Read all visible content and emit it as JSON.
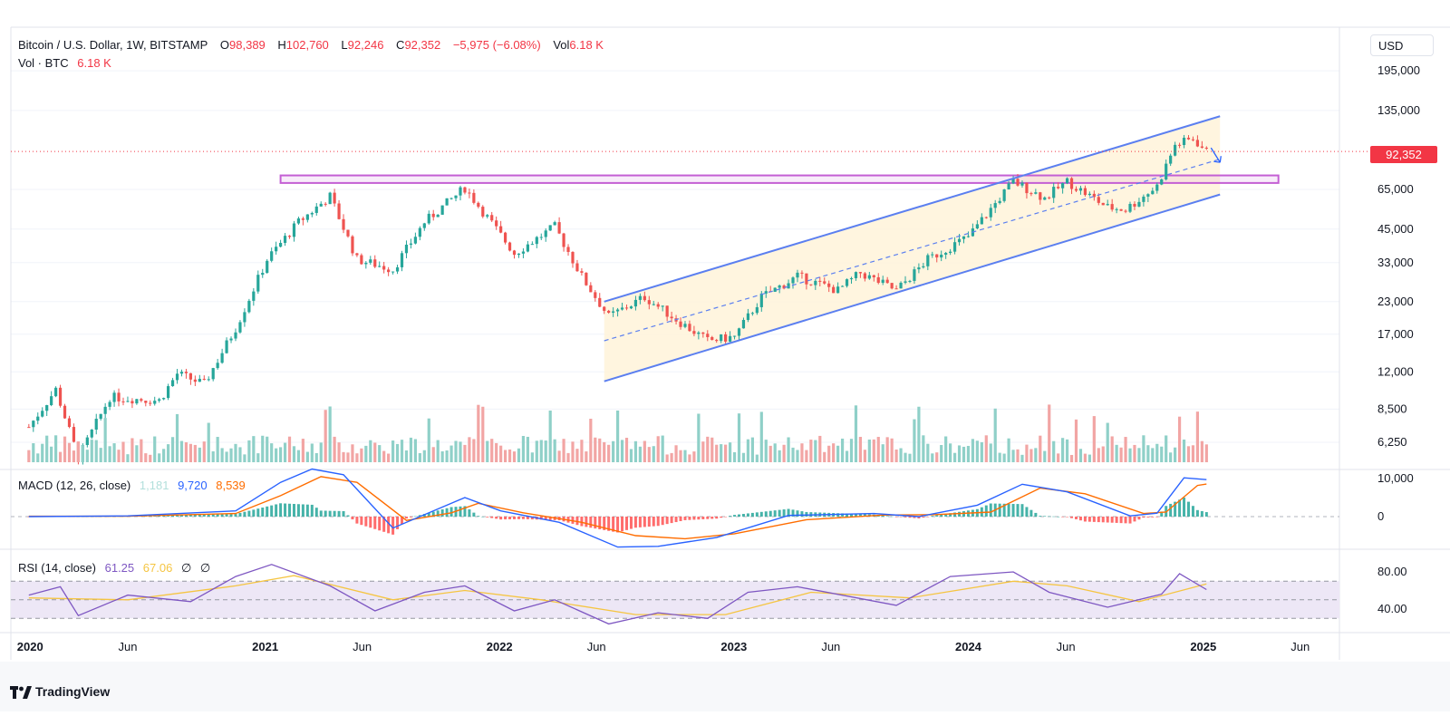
{
  "symbol": {
    "name": "Bitcoin / U.S. Dollar, 1W, BITSTAMP",
    "open_label": "O",
    "open": "98,389",
    "high_label": "H",
    "high": "102,760",
    "low_label": "L",
    "low": "92,246",
    "close_label": "C",
    "close": "92,352",
    "change": "−5,975 (−6.08%)",
    "vol_label": "Vol",
    "vol": "6.18 K"
  },
  "volume_legend": {
    "label": "Vol · BTC",
    "value": "6.18 K"
  },
  "currency": "USD",
  "last_price_tag": "92,352",
  "macd_legend": {
    "label": "MACD (12, 26, close)",
    "hist": "1,181",
    "macd": "9,720",
    "signal": "8,539"
  },
  "rsi_legend": {
    "label": "RSI (14, close)",
    "rsi": "61.25",
    "ma": "67.06",
    "extra1": "∅",
    "extra2": "∅"
  },
  "brand": "TradingView",
  "colors": {
    "up": "#26a69a",
    "down": "#ef5350",
    "vol_up": "#8fd0c8",
    "vol_down": "#f2a5a4",
    "channel_line": "#5b7ff0",
    "channel_fill": "#fff3d9",
    "resistance_box": "#c45fd4",
    "macd": "#2962ff",
    "signal": "#ff6d00",
    "rsi": "#7e57c2",
    "rsi_ma": "#f5c542",
    "rsi_band": "#ede7f6"
  },
  "chart_data": [
    {
      "type": "candlestick",
      "title": "Bitcoin / U.S. Dollar, 1W, BITSTAMP",
      "scale": "log",
      "y_ticks": [
        6250,
        8500,
        12000,
        17000,
        23000,
        33000,
        45000,
        65000,
        135000,
        195000
      ],
      "y_tick_labels": [
        "6,250",
        "8,500",
        "12,000",
        "17,000",
        "23,000",
        "33,000",
        "45,000",
        "65,000",
        "135,000",
        "195,000"
      ],
      "x_ticks": [
        "2020",
        "Jun",
        "2021",
        "Jun",
        "2022",
        "Jun",
        "2023",
        "Jun",
        "2024",
        "Jun",
        "2025",
        "Jun"
      ],
      "last_price": 92352,
      "price_path": [
        [
          "2019-12-30",
          7200
        ],
        [
          "2020-02-10",
          10200
        ],
        [
          "2020-03-16",
          5400
        ],
        [
          "2020-05-04",
          9500
        ],
        [
          "2020-07-20",
          9200
        ],
        [
          "2020-08-17",
          11800
        ],
        [
          "2020-09-28",
          10700
        ],
        [
          "2020-11-16",
          18000
        ],
        [
          "2021-01-04",
          34000
        ],
        [
          "2021-02-22",
          48000
        ],
        [
          "2021-04-12",
          61000
        ],
        [
          "2021-05-24",
          34000
        ],
        [
          "2021-07-19",
          31000
        ],
        [
          "2021-09-06",
          48000
        ],
        [
          "2021-11-08",
          66000
        ],
        [
          "2022-01-24",
          36000
        ],
        [
          "2022-03-28",
          46000
        ],
        [
          "2022-05-09",
          29000
        ],
        [
          "2022-06-20",
          20000
        ],
        [
          "2022-08-15",
          24000
        ],
        [
          "2022-10-03",
          19500
        ],
        [
          "2022-11-21",
          16000
        ],
        [
          "2023-01-02",
          16600
        ],
        [
          "2023-02-13",
          24000
        ],
        [
          "2023-04-10",
          29000
        ],
        [
          "2023-06-12",
          25500
        ],
        [
          "2023-07-17",
          30000
        ],
        [
          "2023-09-11",
          25500
        ],
        [
          "2023-10-30",
          34000
        ],
        [
          "2024-01-01",
          42000
        ],
        [
          "2024-03-11",
          70000
        ],
        [
          "2024-04-29",
          60000
        ],
        [
          "2024-06-03",
          70000
        ],
        [
          "2024-08-05",
          55000
        ],
        [
          "2024-09-02",
          54000
        ],
        [
          "2024-10-21",
          67000
        ],
        [
          "2024-11-18",
          98000
        ],
        [
          "2024-12-16",
          104000
        ],
        [
          "2025-01-06",
          92352
        ]
      ],
      "channel": {
        "upper": [
          [
            "2022-06-13",
            23000
          ],
          [
            "2025-01-27",
            128000
          ]
        ],
        "lower": [
          [
            "2022-06-13",
            11000
          ],
          [
            "2025-01-27",
            62000
          ]
        ],
        "mid": [
          [
            "2022-06-13",
            16000
          ],
          [
            "2025-01-27",
            86000
          ]
        ]
      },
      "resistance_zone": {
        "from": "2021-01-25",
        "to": "2025-04-28",
        "low": 69000,
        "high": 74000
      }
    },
    {
      "type": "bar",
      "title": "Vol · BTC",
      "description": "weekly volume bars, shaded by candle direction"
    },
    {
      "type": "line",
      "title": "MACD (12, 26, close)",
      "y_ticks": [
        0,
        10000
      ],
      "y_tick_labels": [
        "0",
        "10,000"
      ],
      "series": [
        {
          "name": "MACD",
          "points": [
            [
              "2019-12-30",
              0
            ],
            [
              "2020-06-01",
              200
            ],
            [
              "2020-11-16",
              1500
            ],
            [
              "2021-01-25",
              9000
            ],
            [
              "2021-03-15",
              12500
            ],
            [
              "2021-05-03",
              11000
            ],
            [
              "2021-07-19",
              -3000
            ],
            [
              "2021-10-04",
              2500
            ],
            [
              "2021-11-08",
              5000
            ],
            [
              "2022-01-03",
              1500
            ],
            [
              "2022-04-04",
              -1500
            ],
            [
              "2022-07-04",
              -8000
            ],
            [
              "2022-09-05",
              -7800
            ],
            [
              "2022-12-05",
              -5500
            ],
            [
              "2023-03-27",
              300
            ],
            [
              "2023-08-07",
              800
            ],
            [
              "2023-10-16",
              0
            ],
            [
              "2024-01-15",
              3000
            ],
            [
              "2024-03-25",
              8500
            ],
            [
              "2024-06-03",
              6500
            ],
            [
              "2024-09-09",
              200
            ],
            [
              "2024-10-21",
              900
            ],
            [
              "2024-12-02",
              10200
            ],
            [
              "2025-01-06",
              9720
            ]
          ]
        },
        {
          "name": "Signal",
          "points": [
            [
              "2019-12-30",
              100
            ],
            [
              "2020-06-01",
              100
            ],
            [
              "2020-11-16",
              800
            ],
            [
              "2021-01-25",
              5500
            ],
            [
              "2021-03-29",
              10500
            ],
            [
              "2021-05-24",
              9000
            ],
            [
              "2021-08-09",
              -1000
            ],
            [
              "2021-10-18",
              1000
            ],
            [
              "2021-11-29",
              3500
            ],
            [
              "2022-02-07",
              1000
            ],
            [
              "2022-05-09",
              -1500
            ],
            [
              "2022-08-01",
              -5000
            ],
            [
              "2022-10-17",
              -5800
            ],
            [
              "2023-01-02",
              -4500
            ],
            [
              "2023-04-24",
              -800
            ],
            [
              "2023-08-21",
              400
            ],
            [
              "2023-11-06",
              500
            ],
            [
              "2024-02-05",
              1200
            ],
            [
              "2024-04-22",
              7500
            ],
            [
              "2024-07-01",
              6000
            ],
            [
              "2024-09-30",
              800
            ],
            [
              "2024-11-04",
              1200
            ],
            [
              "2024-12-23",
              8200
            ],
            [
              "2025-01-06",
              8539
            ]
          ]
        }
      ]
    },
    {
      "type": "line",
      "title": "RSI (14, close)",
      "y_ticks": [
        40,
        80
      ],
      "y_tick_labels": [
        "40.00",
        "80.00"
      ],
      "bands": [
        30,
        50,
        70
      ],
      "series": [
        {
          "name": "RSI",
          "points": [
            [
              "2019-12-30",
              55
            ],
            [
              "2020-02-17",
              64
            ],
            [
              "2020-03-16",
              33
            ],
            [
              "2020-06-01",
              55
            ],
            [
              "2020-09-07",
              48
            ],
            [
              "2020-11-16",
              75
            ],
            [
              "2021-01-11",
              88
            ],
            [
              "2021-04-12",
              65
            ],
            [
              "2021-06-21",
              38
            ],
            [
              "2021-09-06",
              58
            ],
            [
              "2021-11-08",
              65
            ],
            [
              "2022-01-24",
              38
            ],
            [
              "2022-03-28",
              50
            ],
            [
              "2022-06-20",
              24
            ],
            [
              "2022-09-05",
              36
            ],
            [
              "2022-11-21",
              30
            ],
            [
              "2023-01-23",
              58
            ],
            [
              "2023-04-10",
              64
            ],
            [
              "2023-09-11",
              44
            ],
            [
              "2023-12-04",
              75
            ],
            [
              "2024-03-11",
              80
            ],
            [
              "2024-05-06",
              58
            ],
            [
              "2024-08-05",
              42
            ],
            [
              "2024-10-28",
              56
            ],
            [
              "2024-11-25",
              78
            ],
            [
              "2025-01-06",
              61
            ]
          ]
        },
        {
          "name": "RSI MA",
          "points": [
            [
              "2019-12-30",
              52
            ],
            [
              "2020-06-01",
              50
            ],
            [
              "2020-11-16",
              65
            ],
            [
              "2021-02-15",
              76
            ],
            [
              "2021-07-19",
              50
            ],
            [
              "2021-11-08",
              60
            ],
            [
              "2022-03-07",
              50
            ],
            [
              "2022-08-01",
              34
            ],
            [
              "2022-12-19",
              34
            ],
            [
              "2023-05-01",
              58
            ],
            [
              "2023-10-02",
              52
            ],
            [
              "2024-03-11",
              70
            ],
            [
              "2024-06-03",
              65
            ],
            [
              "2024-09-23",
              48
            ],
            [
              "2024-12-09",
              62
            ],
            [
              "2025-01-06",
              67
            ]
          ]
        }
      ]
    }
  ]
}
